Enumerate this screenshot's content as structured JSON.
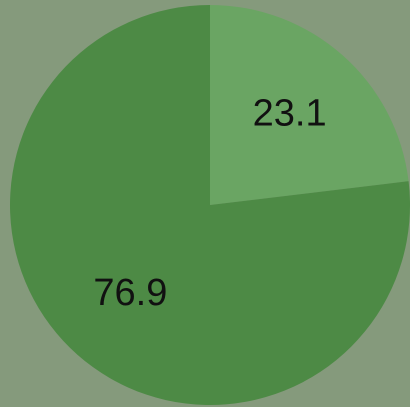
{
  "chart_data": {
    "type": "pie",
    "values": [
      23.1,
      76.9
    ],
    "colors": [
      "#6aa563",
      "#4d8a45"
    ],
    "start_angle": 90,
    "direction": "clockwise"
  }
}
